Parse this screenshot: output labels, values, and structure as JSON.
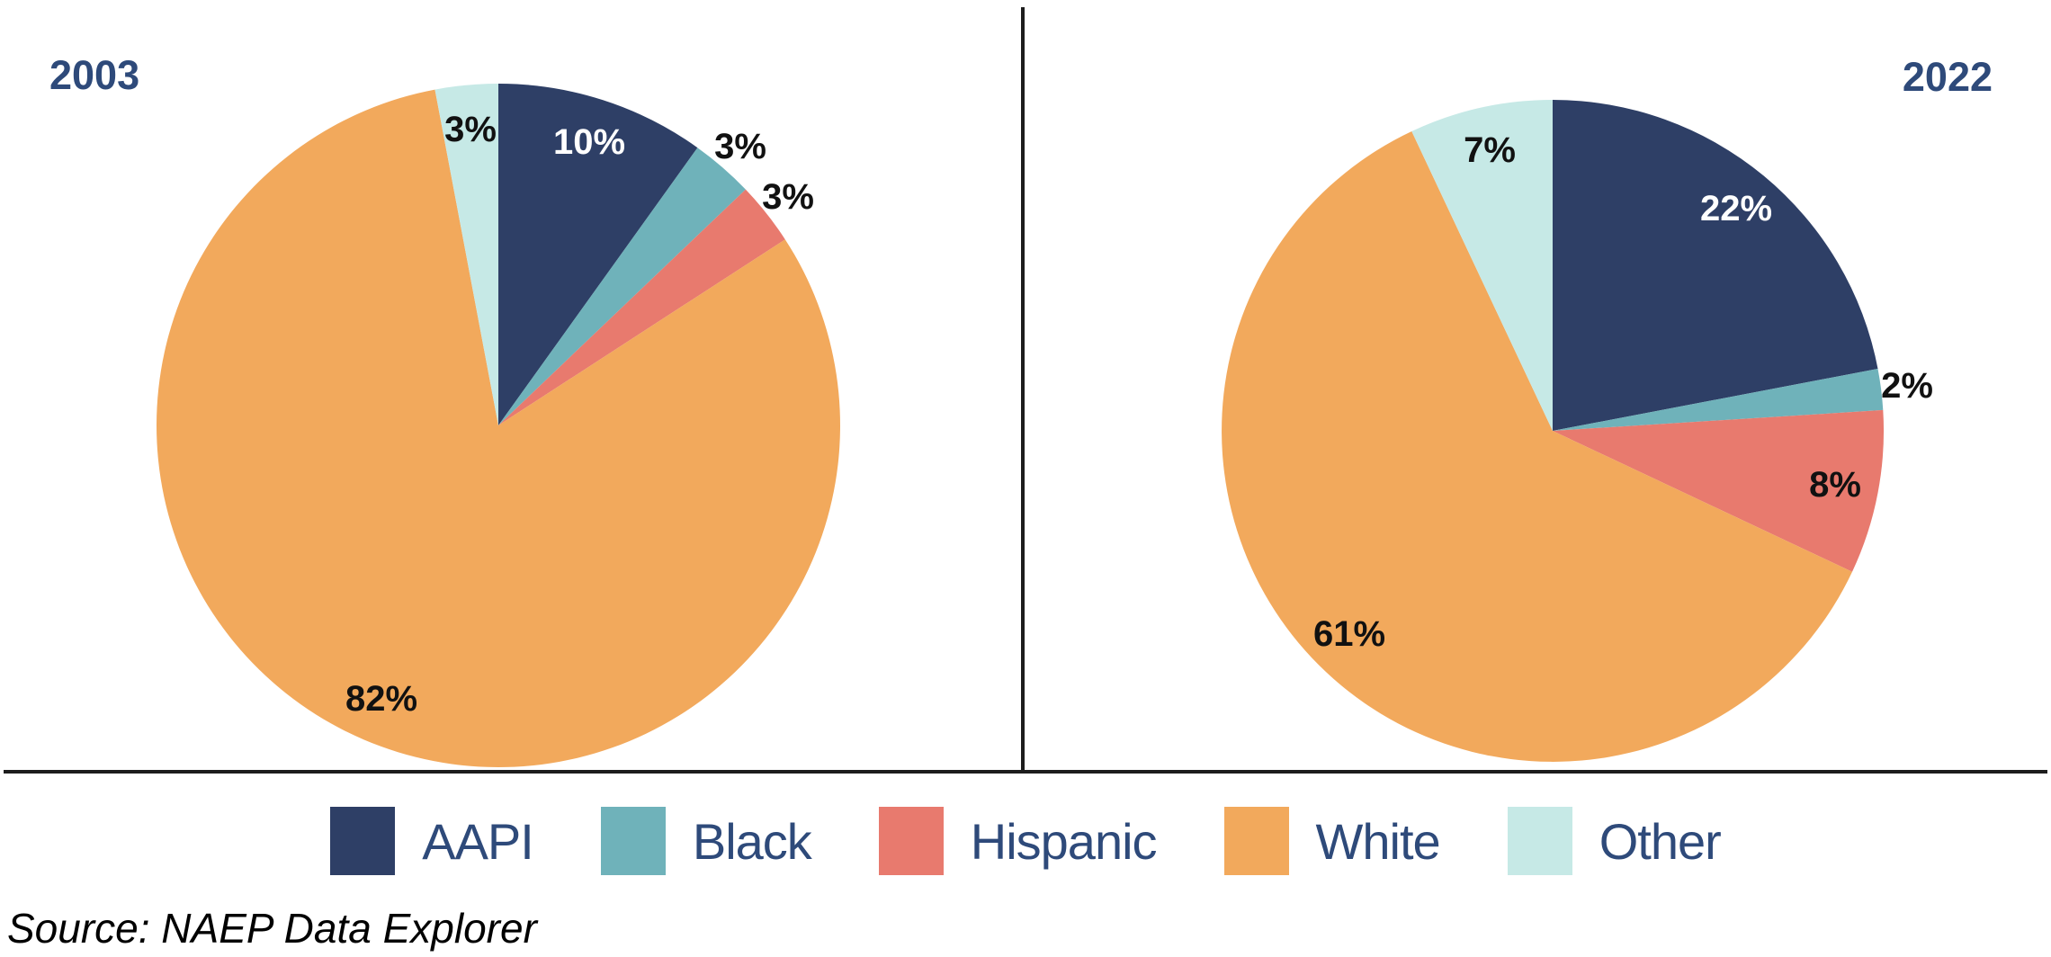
{
  "figure": {
    "background": "#FFFFFF"
  },
  "palette": {
    "navy": "#2E3F66",
    "teal": "#6FB2BA",
    "salmon": "#E87A6E",
    "orange": "#F2A95C",
    "light_cyan": "#C6E9E6",
    "title_text": "#2E4A7A",
    "divider_line": "#1D1D1D",
    "label_dark": "#111111",
    "label_light": "#FFFFFF"
  },
  "chart_data": [
    {
      "type": "pie",
      "title": "2003",
      "start_angle_deg": 0,
      "direction": "clockwise",
      "categories": [
        "AAPI",
        "Black",
        "Hispanic",
        "White",
        "Other"
      ],
      "values": [
        10,
        3,
        3,
        82,
        3
      ],
      "slices": [
        {
          "label": "AAPI",
          "value_pct": 10,
          "data_label": "10%",
          "color": "#2E3F66",
          "label_placement": "inside",
          "label_color": "#FFFFFF"
        },
        {
          "label": "Black",
          "value_pct": 3,
          "data_label": "3%",
          "color": "#6FB2BA",
          "label_placement": "outside",
          "label_color": "#111111"
        },
        {
          "label": "Hispanic",
          "value_pct": 3,
          "data_label": "3%",
          "color": "#E87A6E",
          "label_placement": "outside",
          "label_color": "#111111"
        },
        {
          "label": "White",
          "value_pct": 82,
          "data_label": "82%",
          "color": "#F2A95C",
          "label_placement": "inside",
          "label_color": "#111111"
        },
        {
          "label": "Other",
          "value_pct": 3,
          "data_label": "3%",
          "color": "#C6E9E6",
          "label_placement": "inside",
          "label_color": "#111111"
        }
      ]
    },
    {
      "type": "pie",
      "title": "2022",
      "start_angle_deg": 0,
      "direction": "clockwise",
      "categories": [
        "AAPI",
        "Black",
        "Hispanic",
        "White",
        "Other"
      ],
      "values": [
        22,
        2,
        8,
        61,
        7
      ],
      "slices": [
        {
          "label": "AAPI",
          "value_pct": 22,
          "data_label": "22%",
          "color": "#2E3F66",
          "label_placement": "inside",
          "label_color": "#FFFFFF"
        },
        {
          "label": "Black",
          "value_pct": 2,
          "data_label": "2%",
          "color": "#6FB2BA",
          "label_placement": "outside",
          "label_color": "#111111"
        },
        {
          "label": "Hispanic",
          "value_pct": 8,
          "data_label": "8%",
          "color": "#E87A6E",
          "label_placement": "inside",
          "label_color": "#111111"
        },
        {
          "label": "White",
          "value_pct": 61,
          "data_label": "61%",
          "color": "#F2A95C",
          "label_placement": "inside",
          "label_color": "#111111"
        },
        {
          "label": "Other",
          "value_pct": 7,
          "data_label": "7%",
          "color": "#C6E9E6",
          "label_placement": "inside",
          "label_color": "#111111"
        }
      ]
    }
  ],
  "legend": {
    "position": "bottom-center",
    "items": [
      {
        "label": "AAPI",
        "color": "#2E3F66"
      },
      {
        "label": "Black",
        "color": "#6FB2BA"
      },
      {
        "label": "Hispanic",
        "color": "#E87A6E"
      },
      {
        "label": "White",
        "color": "#F2A95C"
      },
      {
        "label": "Other",
        "color": "#C6E9E6"
      }
    ]
  },
  "source": {
    "text": "Source: NAEP Data Explorer"
  }
}
